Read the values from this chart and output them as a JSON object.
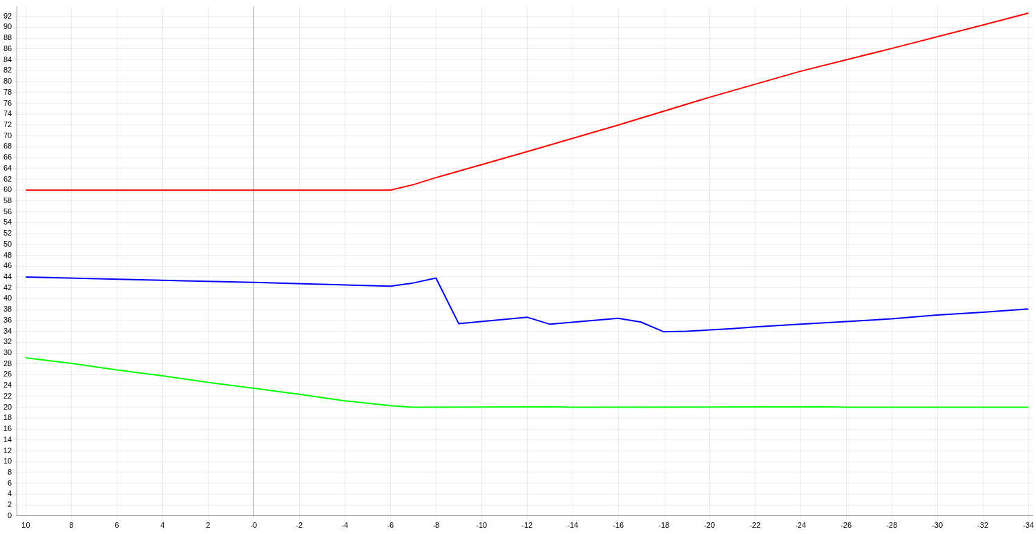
{
  "chart_data": {
    "type": "line",
    "xlim": [
      10.4,
      -34.2
    ],
    "ylim": [
      0,
      93.8
    ],
    "xticks": [
      10,
      8,
      6,
      4,
      2,
      {
        "value": 0,
        "label": "-0"
      },
      -2,
      -4,
      -6,
      -8,
      -10,
      -12,
      -14,
      -16,
      -18,
      -20,
      -22,
      -24,
      -26,
      -28,
      -30,
      -32,
      -34
    ],
    "yticks": [
      0,
      2,
      4,
      6,
      8,
      10,
      12,
      14,
      16,
      18,
      20,
      22,
      24,
      26,
      28,
      30,
      32,
      34,
      36,
      38,
      40,
      42,
      44,
      46,
      48,
      50,
      52,
      54,
      56,
      58,
      60,
      62,
      64,
      66,
      68,
      70,
      72,
      74,
      76,
      78,
      80,
      82,
      84,
      86,
      88,
      90,
      92
    ],
    "grid": true,
    "marker": "none",
    "line_style": "solid",
    "ref_lines": [
      {
        "axis": "x",
        "value": 0,
        "color": "#a0a0a0"
      }
    ],
    "series": [
      {
        "color": "#ff0000",
        "x": [
          10,
          0,
          -6,
          -7,
          -8,
          -9,
          -12,
          -16,
          -20,
          -24,
          -28,
          -32,
          -34
        ],
        "values": [
          60,
          60,
          60,
          61,
          62.3,
          63.5,
          67.1,
          72,
          77.1,
          81.9,
          86.1,
          90.4,
          92.6
        ]
      },
      {
        "color": "#0000ff",
        "x": [
          10,
          0,
          -6,
          -7,
          -8,
          -9,
          -12,
          -13,
          -16,
          -17,
          -18,
          -19,
          -21,
          -22,
          -24,
          -26,
          -28,
          -30,
          -32,
          -34
        ],
        "values": [
          44,
          43,
          42.3,
          42.9,
          43.8,
          35.4,
          36.6,
          35.3,
          36.4,
          35.7,
          33.9,
          34,
          34.5,
          34.8,
          35.3,
          35.8,
          36.3,
          37,
          37.5,
          38.1
        ]
      },
      {
        "color": "#00ff00",
        "x": [
          10,
          8,
          6,
          4,
          2,
          0,
          -2,
          -4,
          -6,
          -7,
          -13,
          -14,
          -25,
          -26,
          -34
        ],
        "values": [
          29.1,
          28.1,
          26.9,
          25.8,
          24.6,
          23.5,
          22.4,
          21.2,
          20.3,
          20,
          20.1,
          20,
          20.1,
          20,
          20
        ]
      }
    ]
  }
}
